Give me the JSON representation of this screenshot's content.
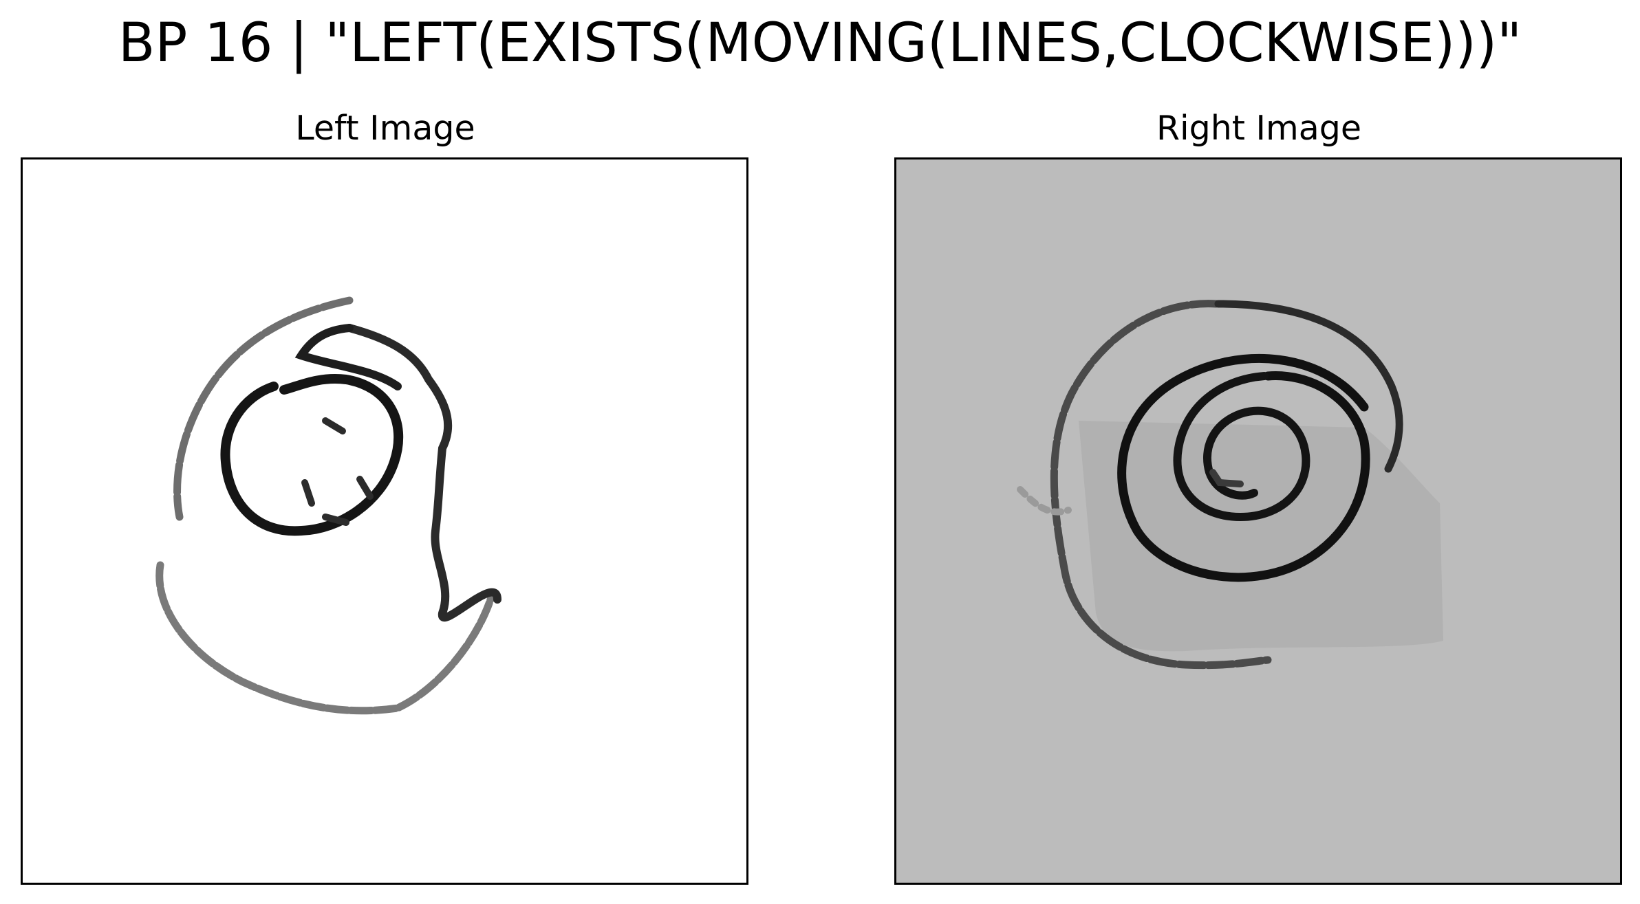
{
  "figure": {
    "title": "BP 16 | \"LEFT(EXISTS(MOVING(LINES,CLOCKWISE)))\""
  },
  "panels": {
    "left": {
      "title": "Left Image"
    },
    "right": {
      "title": "Right Image"
    }
  },
  "colors": {
    "left_background": "#ffffff",
    "right_background": "#bcbcbc",
    "right_shadow_patch": "#aeaeae",
    "dark_stroke": "#1a1a1a",
    "light_stroke": "#7a7a7a"
  }
}
